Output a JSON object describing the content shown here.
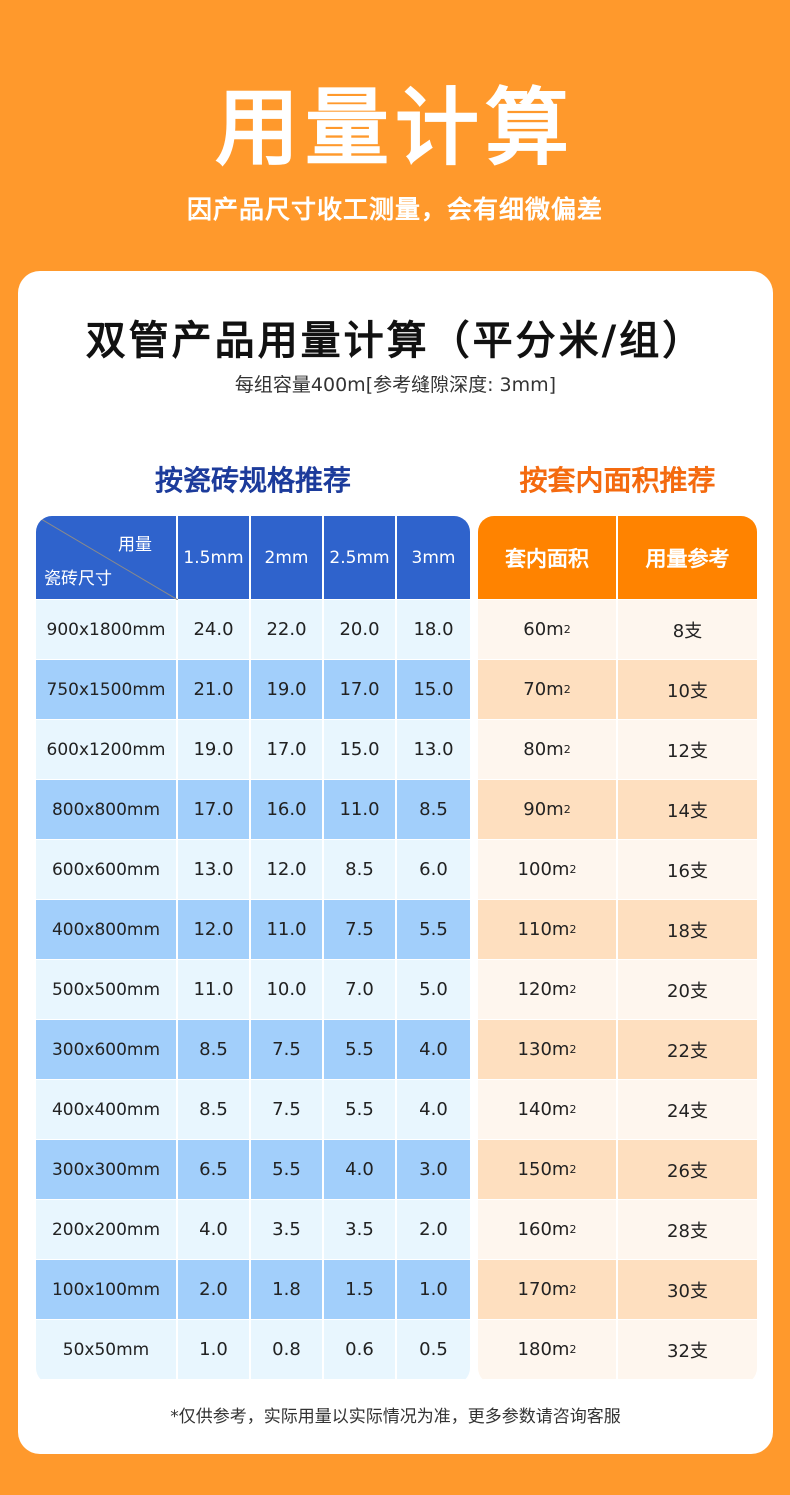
{
  "hero": {
    "title": "用量计算",
    "subtitle": "因产品尺寸收工测量，会有细微偏差"
  },
  "card": {
    "title": "双管产品用量计算（平分米/组）",
    "subtitle": "每组容量400m[参考缝隙深度: 3mm]",
    "footnote": "*仅供参考，实际用量以实际情况为准，更多参数请咨询客服"
  },
  "tile_table": {
    "section_title": "按瓷砖规格推荐",
    "header_corner_top": "用量",
    "header_corner_bottom": "瓷砖尺寸",
    "columns": [
      "1.5mm",
      "2mm",
      "2.5mm",
      "3mm"
    ],
    "rows": [
      {
        "size": "900x1800mm",
        "values": [
          "24.0",
          "22.0",
          "20.0",
          "18.0"
        ]
      },
      {
        "size": "750x1500mm",
        "values": [
          "21.0",
          "19.0",
          "17.0",
          "15.0"
        ]
      },
      {
        "size": "600x1200mm",
        "values": [
          "19.0",
          "17.0",
          "15.0",
          "13.0"
        ]
      },
      {
        "size": "800x800mm",
        "values": [
          "17.0",
          "16.0",
          "11.0",
          "8.5"
        ]
      },
      {
        "size": "600x600mm",
        "values": [
          "13.0",
          "12.0",
          "8.5",
          "6.0"
        ]
      },
      {
        "size": "400x800mm",
        "values": [
          "12.0",
          "11.0",
          "7.5",
          "5.5"
        ]
      },
      {
        "size": "500x500mm",
        "values": [
          "11.0",
          "10.0",
          "7.0",
          "5.0"
        ]
      },
      {
        "size": "300x600mm",
        "values": [
          "8.5",
          "7.5",
          "5.5",
          "4.0"
        ]
      },
      {
        "size": "400x400mm",
        "values": [
          "8.5",
          "7.5",
          "5.5",
          "4.0"
        ]
      },
      {
        "size": "300x300mm",
        "values": [
          "6.5",
          "5.5",
          "4.0",
          "3.0"
        ]
      },
      {
        "size": "200x200mm",
        "values": [
          "4.0",
          "3.5",
          "3.5",
          "2.0"
        ]
      },
      {
        "size": "100x100mm",
        "values": [
          "2.0",
          "1.8",
          "1.5",
          "1.0"
        ]
      },
      {
        "size": "50x50mm",
        "values": [
          "1.0",
          "0.8",
          "0.6",
          "0.5"
        ]
      }
    ]
  },
  "area_table": {
    "section_title": "按套内面积推荐",
    "columns": [
      "套内面积",
      "用量参考"
    ],
    "area_unit_sup": "2",
    "rows": [
      {
        "area": "60m",
        "usage": "8支"
      },
      {
        "area": "70m",
        "usage": "10支"
      },
      {
        "area": "80m",
        "usage": "12支"
      },
      {
        "area": "90m",
        "usage": "14支"
      },
      {
        "area": "100m",
        "usage": "16支"
      },
      {
        "area": "110m",
        "usage": "18支"
      },
      {
        "area": "120m",
        "usage": "20支"
      },
      {
        "area": "130m",
        "usage": "22支"
      },
      {
        "area": "140m",
        "usage": "24支"
      },
      {
        "area": "150m",
        "usage": "26支"
      },
      {
        "area": "160m",
        "usage": "28支"
      },
      {
        "area": "170m",
        "usage": "30支"
      },
      {
        "area": "180m",
        "usage": "32支"
      }
    ]
  },
  "colors": {
    "background": "#FF992C",
    "blue_header": "#2F63CC",
    "blue_row_light": "#E8F6FE",
    "blue_row_dark": "#A2CFFB",
    "orange_header": "#FF8300",
    "orange_row_light": "#FEF6EE",
    "orange_row_dark": "#FEDFBF",
    "blue_title": "#1C3B9B",
    "orange_title": "#F46A0F"
  }
}
